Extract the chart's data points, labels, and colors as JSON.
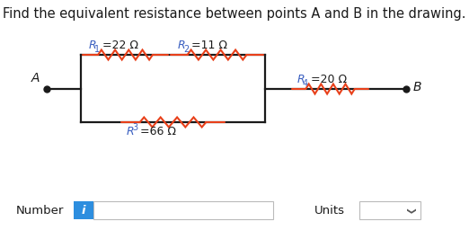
{
  "title": "Find the equivalent resistance between points A and B in the drawing.",
  "title_fontsize": 10.5,
  "title_color": "#1a1a1a",
  "bg_color": "#ffffff",
  "resistor_color": "#e8401a",
  "wire_color": "#1a1a1a",
  "label_color": "#1a1a1a",
  "italic_color": "#3a5fc0",
  "R1_val": " =22 Ω",
  "R2_val": " =11 Ω",
  "R3_val": " =66 Ω",
  "R4_val": " =20 Ω",
  "point_A": "A",
  "point_B": "B",
  "number_label": "Number",
  "units_label": "Units",
  "input_box_color": "#2d8edf",
  "input_i_color": "#ffffff",
  "drop_arrow": "∨"
}
